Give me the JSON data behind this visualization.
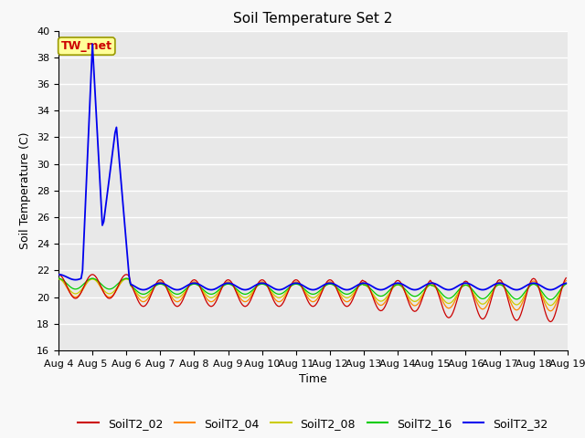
{
  "title": "Soil Temperature Set 2",
  "xlabel": "Time",
  "ylabel": "Soil Temperature (C)",
  "ylim": [
    16,
    40
  ],
  "yticks": [
    16,
    18,
    20,
    22,
    24,
    26,
    28,
    30,
    32,
    34,
    36,
    38,
    40
  ],
  "colors": {
    "SoilT2_02": "#cc0000",
    "SoilT2_04": "#ff8800",
    "SoilT2_08": "#cccc00",
    "SoilT2_16": "#00cc00",
    "SoilT2_32": "#0000ee"
  },
  "annotation_text": "TW_met",
  "annotation_color": "#cc0000",
  "annotation_bg": "#ffff99",
  "annotation_border": "#999900",
  "background_color": "#e8e8e8",
  "grid_color": "#ffffff",
  "title_fontsize": 11,
  "axis_fontsize": 9,
  "tick_fontsize": 8,
  "legend_fontsize": 9
}
